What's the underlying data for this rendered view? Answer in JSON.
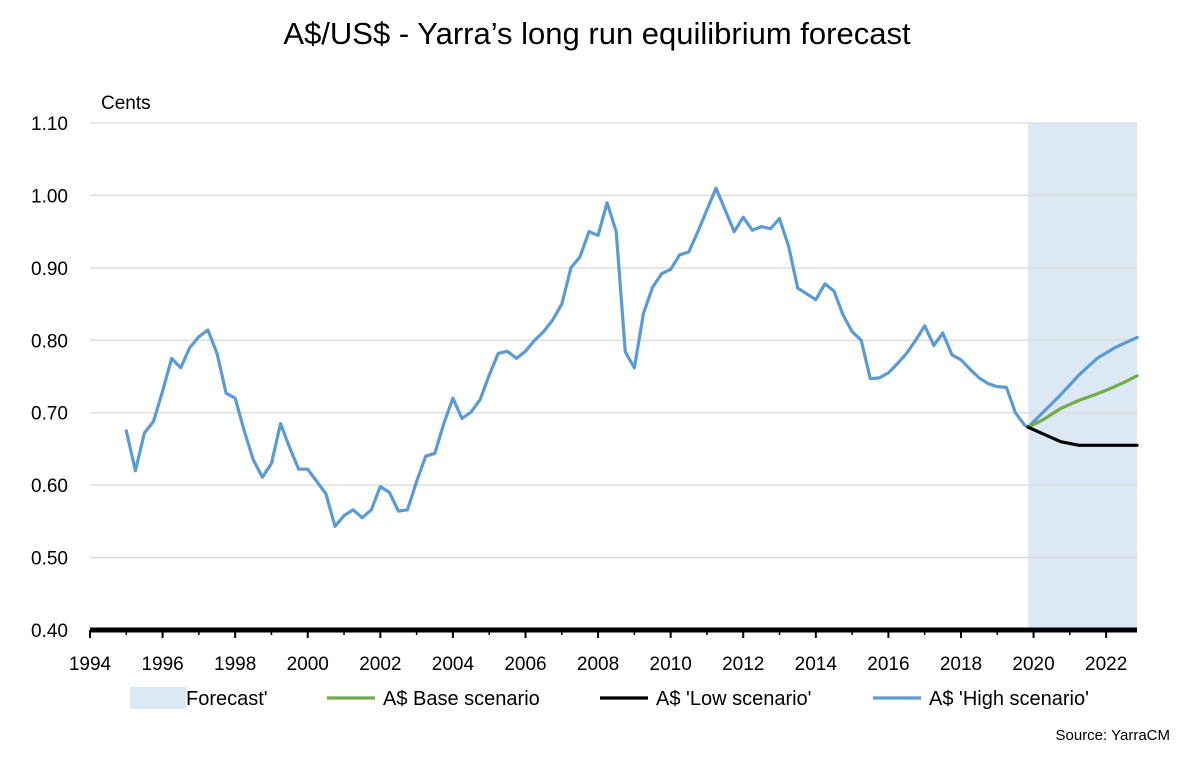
{
  "chart_data": {
    "type": "line",
    "title": "A$/US$ - Yarra’s long run equilibrium forecast",
    "ylabel": "Cents",
    "xlabel": "",
    "ylim": [
      0.4,
      1.1
    ],
    "xlim": [
      1994,
      2022.85
    ],
    "y_ticks": [
      "0.40",
      "0.50",
      "0.60",
      "0.70",
      "0.80",
      "0.90",
      "1.00",
      "1.10"
    ],
    "x_ticks": [
      "1994",
      "1996",
      "1998",
      "2000",
      "2002",
      "2004",
      "2006",
      "2008",
      "2010",
      "2012",
      "2014",
      "2016",
      "2018",
      "2020",
      "2022"
    ],
    "grid": true,
    "legend_position": "bottom",
    "forecast_region": {
      "label": "Forecast'",
      "x_start": 2019.85,
      "x_end": 2022.85,
      "color": "#dce9f5"
    },
    "series": [
      {
        "name": "A$ 'High scenario'",
        "color": "#5b9bd5",
        "x": [
          1995.0,
          1995.25,
          1995.5,
          1995.75,
          1996.0,
          1996.25,
          1996.5,
          1996.75,
          1997.0,
          1997.25,
          1997.5,
          1997.75,
          1998.0,
          1998.25,
          1998.5,
          1998.75,
          1999.0,
          1999.25,
          1999.5,
          1999.75,
          2000.0,
          2000.25,
          2000.5,
          2000.75,
          2001.0,
          2001.25,
          2001.5,
          2001.75,
          2002.0,
          2002.25,
          2002.5,
          2002.75,
          2003.0,
          2003.25,
          2003.5,
          2003.75,
          2004.0,
          2004.25,
          2004.5,
          2004.75,
          2005.0,
          2005.25,
          2005.5,
          2005.75,
          2006.0,
          2006.25,
          2006.5,
          2006.75,
          2007.0,
          2007.25,
          2007.5,
          2007.75,
          2008.0,
          2008.25,
          2008.5,
          2008.75,
          2009.0,
          2009.25,
          2009.5,
          2009.75,
          2010.0,
          2010.25,
          2010.5,
          2010.75,
          2011.0,
          2011.25,
          2011.5,
          2011.75,
          2012.0,
          2012.25,
          2012.5,
          2012.75,
          2013.0,
          2013.25,
          2013.5,
          2013.75,
          2014.0,
          2014.25,
          2014.5,
          2014.75,
          2015.0,
          2015.25,
          2015.5,
          2015.75,
          2016.0,
          2016.25,
          2016.5,
          2016.75,
          2017.0,
          2017.25,
          2017.5,
          2017.75,
          2018.0,
          2018.25,
          2018.5,
          2018.75,
          2019.0,
          2019.25,
          2019.5,
          2019.75,
          2019.85,
          2020.25,
          2020.75,
          2021.25,
          2021.75,
          2022.25,
          2022.85
        ],
        "values": [
          0.675,
          0.62,
          0.672,
          0.688,
          0.73,
          0.775,
          0.762,
          0.79,
          0.805,
          0.814,
          0.782,
          0.727,
          0.72,
          0.675,
          0.635,
          0.611,
          0.63,
          0.685,
          0.652,
          0.622,
          0.622,
          0.605,
          0.588,
          0.543,
          0.558,
          0.566,
          0.555,
          0.566,
          0.598,
          0.59,
          0.564,
          0.566,
          0.605,
          0.64,
          0.644,
          0.685,
          0.72,
          0.692,
          0.701,
          0.718,
          0.752,
          0.782,
          0.785,
          0.775,
          0.785,
          0.8,
          0.812,
          0.828,
          0.85,
          0.9,
          0.915,
          0.95,
          0.945,
          0.99,
          0.95,
          0.784,
          0.762,
          0.837,
          0.873,
          0.892,
          0.898,
          0.918,
          0.922,
          0.95,
          0.98,
          1.01,
          0.98,
          0.95,
          0.97,
          0.952,
          0.957,
          0.954,
          0.968,
          0.93,
          0.872,
          0.864,
          0.856,
          0.878,
          0.868,
          0.835,
          0.812,
          0.8,
          0.747,
          0.748,
          0.755,
          0.768,
          0.782,
          0.8,
          0.82,
          0.793,
          0.81,
          0.78,
          0.773,
          0.76,
          0.748,
          0.74,
          0.736,
          0.735,
          0.7,
          0.683,
          0.68,
          0.7,
          0.725,
          0.752,
          0.775,
          0.79,
          0.804
        ]
      },
      {
        "name": "A$ Base scenario",
        "color": "#70ad47",
        "x": [
          2019.85,
          2020.25,
          2020.75,
          2021.25,
          2021.75,
          2022.0,
          2022.5,
          2022.85
        ],
        "values": [
          0.68,
          0.69,
          0.706,
          0.717,
          0.726,
          0.731,
          0.742,
          0.751
        ]
      },
      {
        "name": "A$ 'Low scenario'",
        "color": "#000000",
        "x": [
          2019.85,
          2020.25,
          2020.75,
          2021.25,
          2021.75,
          2022.25,
          2022.85
        ],
        "values": [
          0.68,
          0.671,
          0.66,
          0.655,
          0.655,
          0.655,
          0.655
        ]
      }
    ],
    "legend": [
      {
        "label": "Forecast'",
        "kind": "box",
        "color": "#dce9f5"
      },
      {
        "label": "A$ Base scenario",
        "kind": "line",
        "color": "#70ad47"
      },
      {
        "label": "A$ 'Low scenario'",
        "kind": "line",
        "color": "#000000"
      },
      {
        "label": "A$ 'High scenario'",
        "kind": "line",
        "color": "#5b9bd5"
      }
    ],
    "source": "Source: YarraCM"
  }
}
